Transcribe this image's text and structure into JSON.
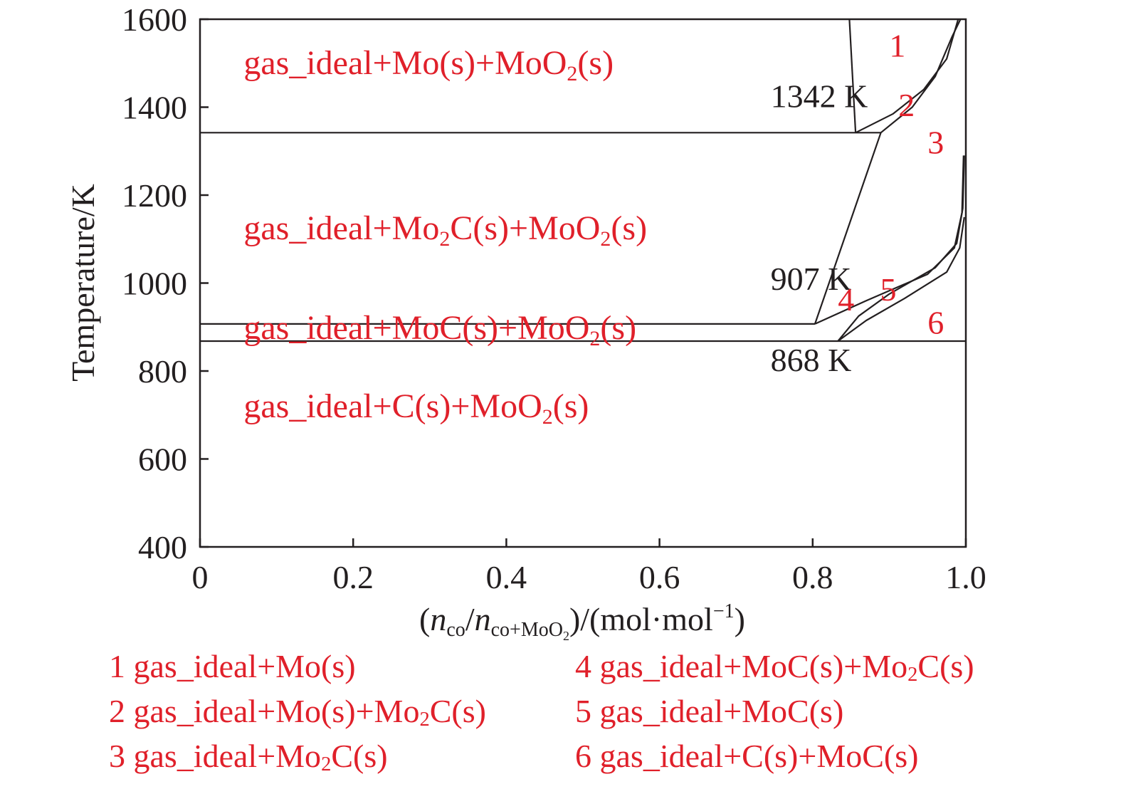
{
  "colors": {
    "region_label": "#e0202a",
    "axis": "#231f20",
    "boundary": "#231f20"
  },
  "chart_data": {
    "type": "line",
    "subtype": "phase-diagram",
    "title": "",
    "xlabel": {
      "paren_open": "(",
      "n1": "n",
      "sub1": "co",
      "slash": "/",
      "n2": "n",
      "sub2_main": "co+MoO",
      "sub2_sub": "2",
      "paren_close": ")",
      "units": "/(mol·mol",
      "sup": "−1",
      "tail": ")"
    },
    "ylabel": "Temperature/K",
    "xlim": [
      0,
      1.0
    ],
    "ylim": [
      400,
      1600
    ],
    "xticks": [
      "0",
      "0.2",
      "0.4",
      "0.6",
      "0.8",
      "1.0"
    ],
    "xtick_values": [
      0,
      0.2,
      0.4,
      0.6,
      0.8,
      1.0
    ],
    "yticks": [
      "400",
      "600",
      "800",
      "1000",
      "1200",
      "1400",
      "1600"
    ],
    "ytick_values": [
      400,
      600,
      800,
      1000,
      1200,
      1400,
      1600
    ],
    "grid": false,
    "boundaries": [
      {
        "name": "isotherm-1342",
        "points": [
          [
            0,
            1342
          ],
          [
            0.889,
            1342
          ]
        ]
      },
      {
        "name": "isotherm-907",
        "points": [
          [
            0,
            907
          ],
          [
            0.803,
            907
          ]
        ]
      },
      {
        "name": "isotherm-868",
        "points": [
          [
            0,
            868
          ],
          [
            1.0,
            868
          ]
        ]
      },
      {
        "name": "mo-boundary",
        "points": [
          [
            0.848,
            1600
          ],
          [
            0.856,
            1342
          ]
        ]
      },
      {
        "name": "mo2c-upper-a",
        "points": [
          [
            0.856,
            1342
          ],
          [
            0.905,
            1385
          ],
          [
            0.945,
            1440
          ],
          [
            0.975,
            1510
          ],
          [
            0.99,
            1600
          ]
        ]
      },
      {
        "name": "mo2c-upper-b",
        "points": [
          [
            0.889,
            1342
          ],
          [
            0.93,
            1400
          ],
          [
            0.96,
            1470
          ],
          [
            0.982,
            1560
          ],
          [
            0.993,
            1600
          ]
        ]
      },
      {
        "name": "mo2c-boundary",
        "points": [
          [
            0.803,
            907
          ],
          [
            0.889,
            1342
          ]
        ]
      },
      {
        "name": "moc-upper-a",
        "points": [
          [
            0.803,
            907
          ],
          [
            0.87,
            960
          ],
          [
            0.95,
            1020
          ],
          [
            0.985,
            1080
          ],
          [
            0.995,
            1160
          ],
          [
            0.997,
            1290
          ]
        ]
      },
      {
        "name": "moc-upper-b",
        "points": [
          [
            0.833,
            868
          ],
          [
            0.86,
            925
          ],
          [
            0.9,
            975
          ],
          [
            0.96,
            1035
          ],
          [
            0.988,
            1090
          ],
          [
            0.996,
            1170
          ],
          [
            0.998,
            1290
          ]
        ]
      },
      {
        "name": "moc-lower",
        "points": [
          [
            0.833,
            868
          ],
          [
            0.87,
            915
          ],
          [
            0.92,
            965
          ],
          [
            0.975,
            1025
          ],
          [
            0.992,
            1080
          ],
          [
            0.998,
            1150
          ]
        ]
      }
    ],
    "temperature_labels": [
      {
        "text": "1342 K",
        "x": 0.745,
        "y": 1400
      },
      {
        "text": "907 K",
        "x": 0.745,
        "y": 985
      },
      {
        "text": "868 K",
        "x": 0.745,
        "y": 800
      }
    ],
    "region_labels": [
      {
        "parts": [
          [
            "gas_ideal+Mo(s)+MoO",
            ""
          ],
          [
            "2",
            "sub"
          ],
          [
            "(s)",
            ""
          ]
        ],
        "x": 0.057,
        "y": 1475
      },
      {
        "parts": [
          [
            "gas_ideal+Mo",
            ""
          ],
          [
            "2",
            "sub"
          ],
          [
            "C(s)+MoO",
            ""
          ],
          [
            "2",
            "sub"
          ],
          [
            "(s)",
            ""
          ]
        ],
        "x": 0.057,
        "y": 1100
      },
      {
        "parts": [
          [
            "gas_ideal+MoC(s)+MoO",
            ""
          ],
          [
            "2",
            "sub"
          ],
          [
            "(s)",
            ""
          ]
        ],
        "x": 0.057,
        "y": 873
      },
      {
        "parts": [
          [
            "gas_ideal+C(s)+MoO",
            ""
          ],
          [
            "2",
            "sub"
          ],
          [
            "(s)",
            ""
          ]
        ],
        "x": 0.057,
        "y": 695
      }
    ],
    "number_labels": [
      {
        "text": "1",
        "x": 0.9,
        "y": 1515
      },
      {
        "text": "2",
        "x": 0.912,
        "y": 1380
      },
      {
        "text": "3",
        "x": 0.95,
        "y": 1295
      },
      {
        "text": "4",
        "x": 0.833,
        "y": 938
      },
      {
        "text": "5",
        "x": 0.888,
        "y": 960
      },
      {
        "text": "6",
        "x": 0.95,
        "y": 885
      }
    ]
  },
  "legend": {
    "items": [
      {
        "parts": [
          [
            "1 gas_ideal+Mo(s)",
            ""
          ]
        ]
      },
      {
        "parts": [
          [
            "2 gas_ideal+Mo(s)+Mo",
            ""
          ],
          [
            "2",
            "sub"
          ],
          [
            "C(s)",
            ""
          ]
        ]
      },
      {
        "parts": [
          [
            "3 gas_ideal+Mo",
            ""
          ],
          [
            "2",
            "sub"
          ],
          [
            "C(s)",
            ""
          ]
        ]
      },
      {
        "parts": [
          [
            "4 gas_ideal+MoC(s)+Mo",
            ""
          ],
          [
            "2",
            "sub"
          ],
          [
            "C(s)",
            ""
          ]
        ]
      },
      {
        "parts": [
          [
            "5 gas_ideal+MoC(s)",
            ""
          ]
        ]
      },
      {
        "parts": [
          [
            "6 gas_ideal+C(s)+MoC(s)",
            ""
          ]
        ]
      }
    ]
  }
}
